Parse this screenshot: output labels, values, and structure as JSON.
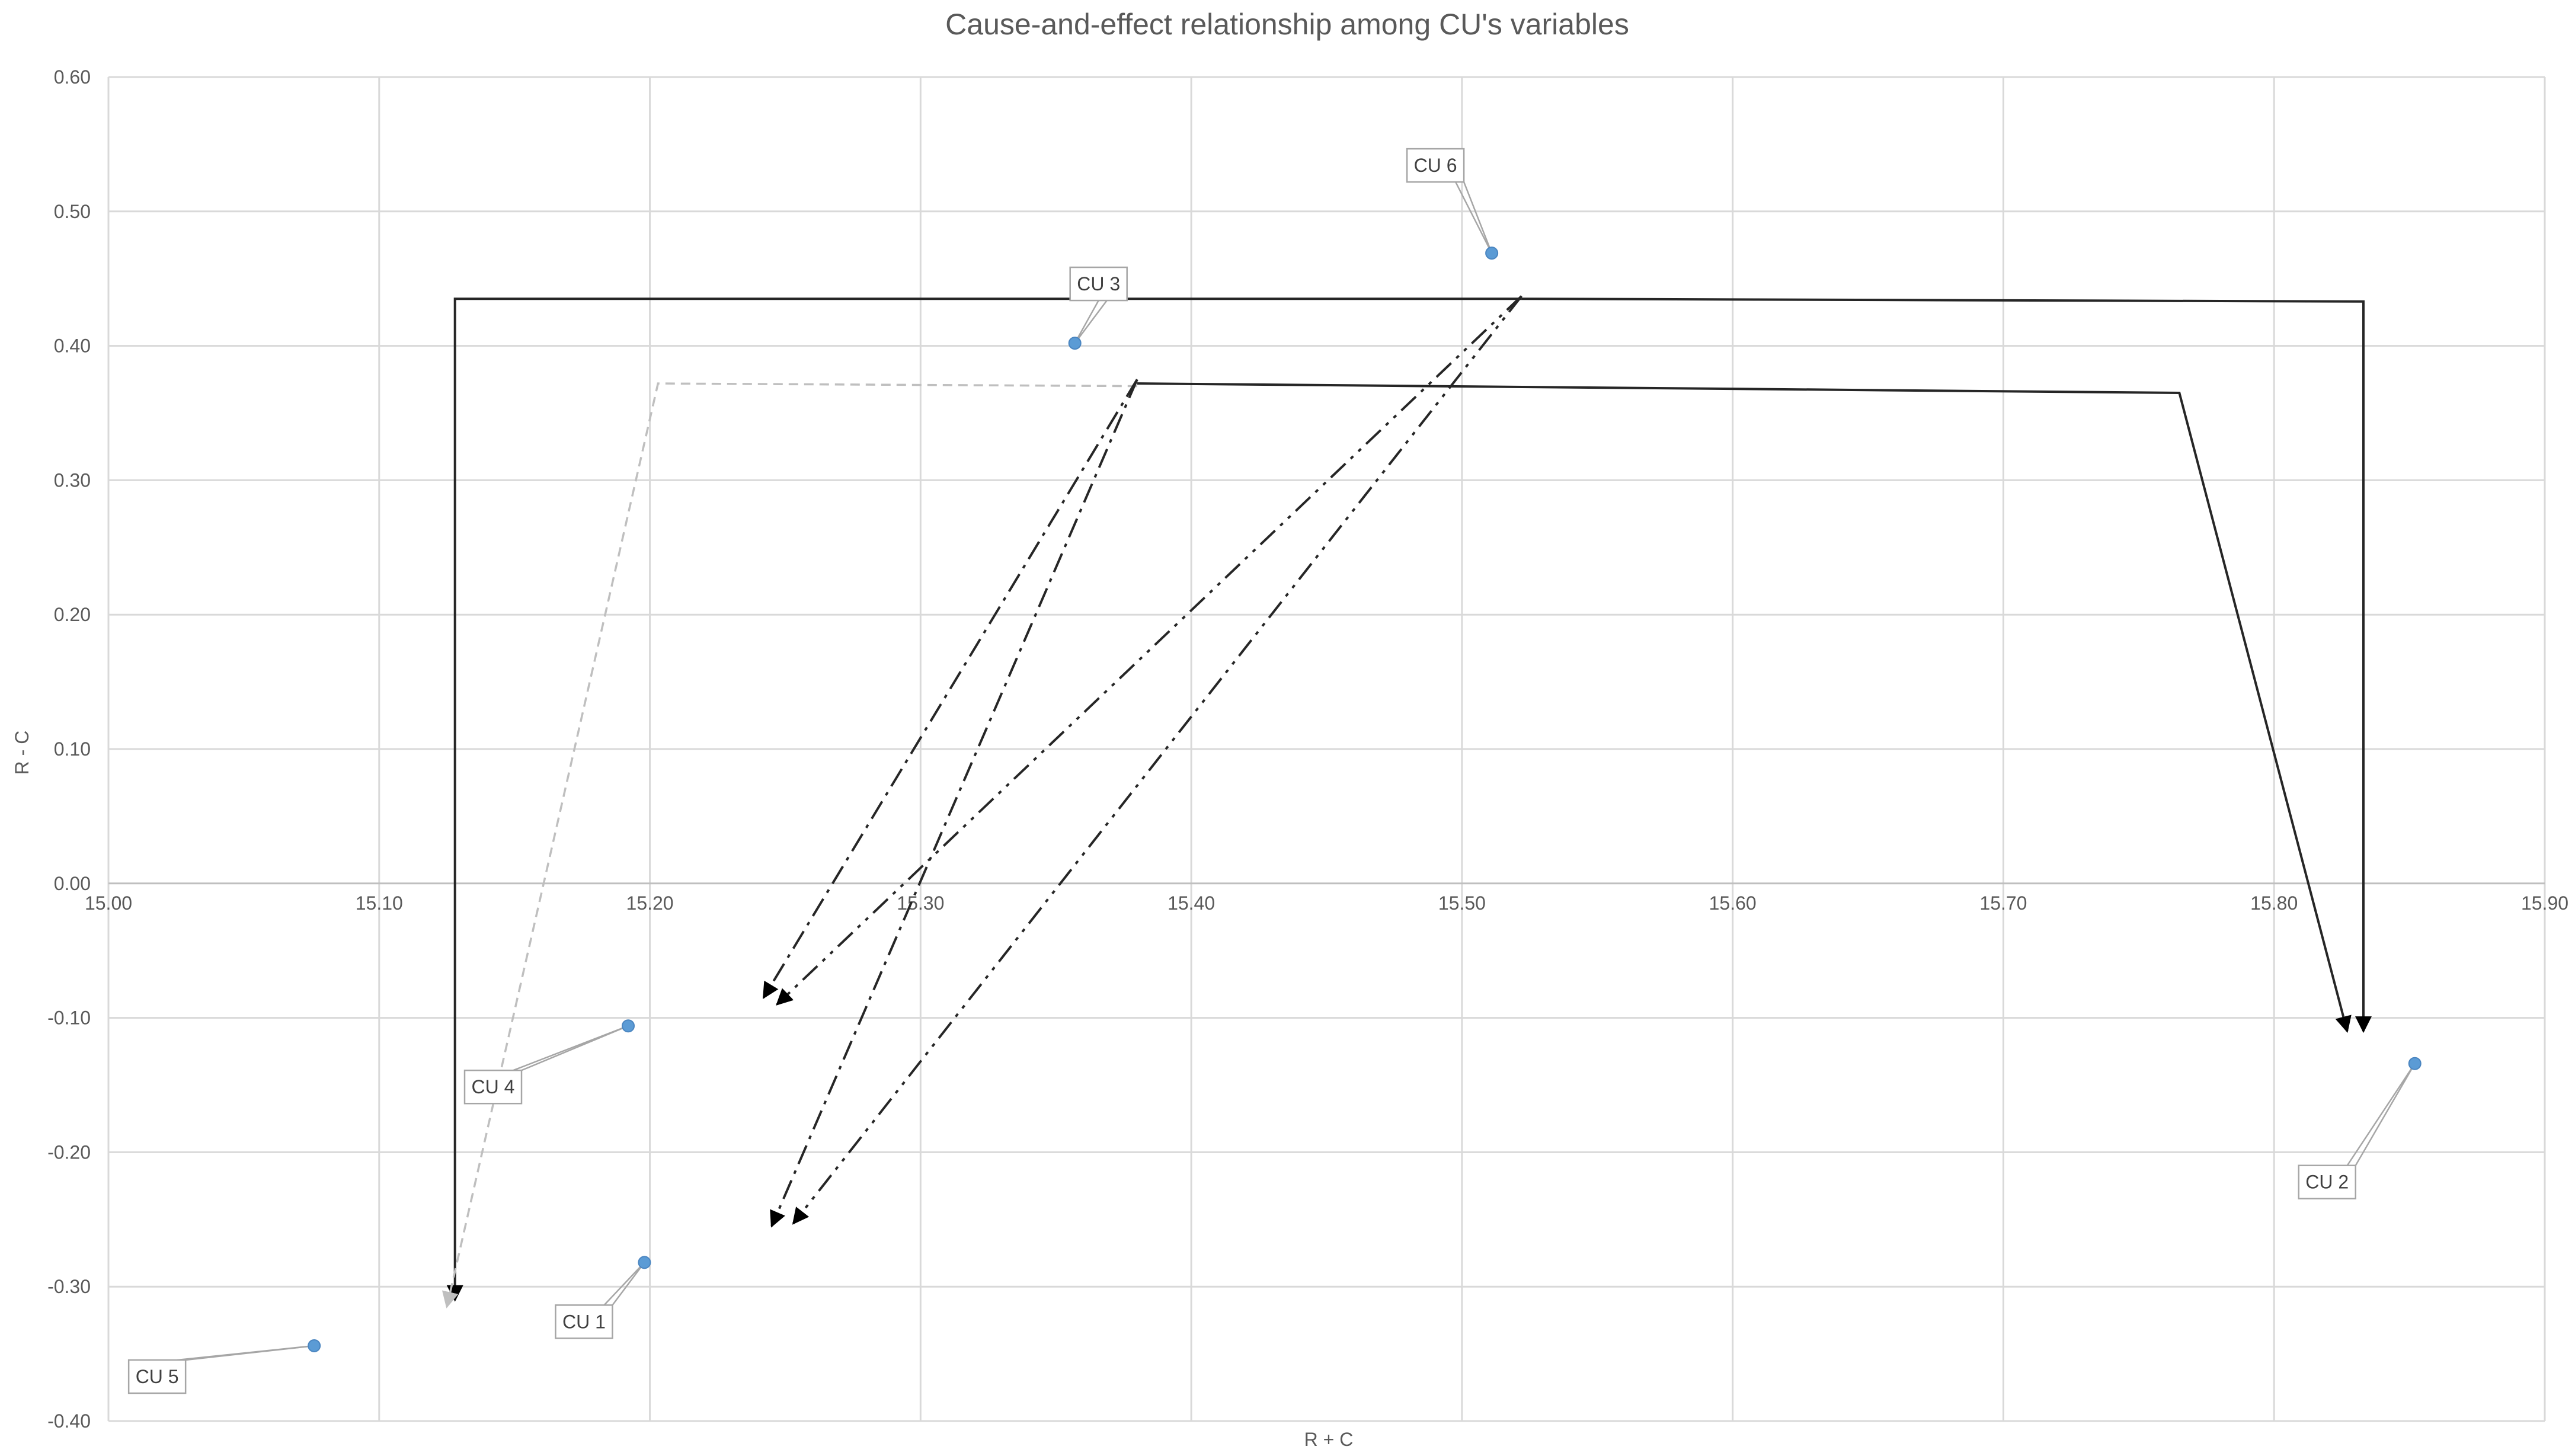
{
  "chart_data": {
    "type": "scatter",
    "title": "Cause-and-effect relationship among CU's variables",
    "xlabel": "R + C",
    "ylabel": "R - C",
    "xlim": [
      15.0,
      15.9
    ],
    "ylim": [
      -0.4,
      0.6
    ],
    "x_ticks": [
      "15.00",
      "15.10",
      "15.20",
      "15.30",
      "15.40",
      "15.50",
      "15.60",
      "15.70",
      "15.80",
      "15.90"
    ],
    "y_ticks": [
      "-0.40",
      "-0.30",
      "-0.20",
      "-0.10",
      "0.00",
      "0.10",
      "0.20",
      "0.30",
      "0.40",
      "0.50",
      "0.60"
    ],
    "grid": true,
    "legend": "none",
    "marker_color": "#5b9bd5",
    "points": [
      {
        "label": "CU 1",
        "x": 15.198,
        "y": -0.282
      },
      {
        "label": "CU 2",
        "x": 15.852,
        "y": -0.134
      },
      {
        "label": "CU 3",
        "x": 15.357,
        "y": 0.402
      },
      {
        "label": "CU 4",
        "x": 15.192,
        "y": -0.106
      },
      {
        "label": "CU 5",
        "x": 15.076,
        "y": -0.344
      },
      {
        "label": "CU 6",
        "x": 15.511,
        "y": 0.469
      }
    ],
    "arrows": [
      {
        "from": "CU 6",
        "to": "CU 5",
        "style": "solid",
        "color": "#262626",
        "path": [
          [
            15.522,
            0.435
          ],
          [
            15.128,
            0.435
          ],
          [
            15.128,
            -0.31
          ]
        ]
      },
      {
        "from": "CU 6",
        "to": "CU 2",
        "style": "solid",
        "color": "#262626",
        "path": [
          [
            15.522,
            0.435
          ],
          [
            15.833,
            0.433
          ],
          [
            15.833,
            -0.11
          ]
        ]
      },
      {
        "from": "CU 3",
        "to": "CU 2",
        "style": "solid",
        "color": "#262626",
        "path": [
          [
            15.38,
            0.372
          ],
          [
            15.765,
            0.365
          ],
          [
            15.827,
            -0.11
          ]
        ]
      },
      {
        "from": "CU 3",
        "to": "CU 5",
        "style": "dashed-gray",
        "color": "#bfbfbf",
        "path": [
          [
            15.38,
            0.37
          ],
          [
            15.203,
            0.372
          ],
          [
            15.125,
            -0.315
          ]
        ]
      },
      {
        "from": "CU 3",
        "to": "CU 4",
        "style": "dash-dot",
        "color": "#262626",
        "path": [
          [
            15.38,
            0.375
          ],
          [
            15.242,
            -0.085
          ]
        ]
      },
      {
        "from": "CU 3",
        "to": "CU 1",
        "style": "dash-dot",
        "color": "#262626",
        "path": [
          [
            15.38,
            0.375
          ],
          [
            15.245,
            -0.255
          ]
        ]
      },
      {
        "from": "CU 6",
        "to": "CU 4",
        "style": "dash-dot-dot",
        "color": "#262626",
        "path": [
          [
            15.522,
            0.437
          ],
          [
            15.247,
            -0.09
          ]
        ]
      },
      {
        "from": "CU 6",
        "to": "CU 1",
        "style": "dash-dot-dot",
        "color": "#262626",
        "path": [
          [
            15.522,
            0.437
          ],
          [
            15.253,
            -0.253
          ]
        ]
      }
    ]
  }
}
